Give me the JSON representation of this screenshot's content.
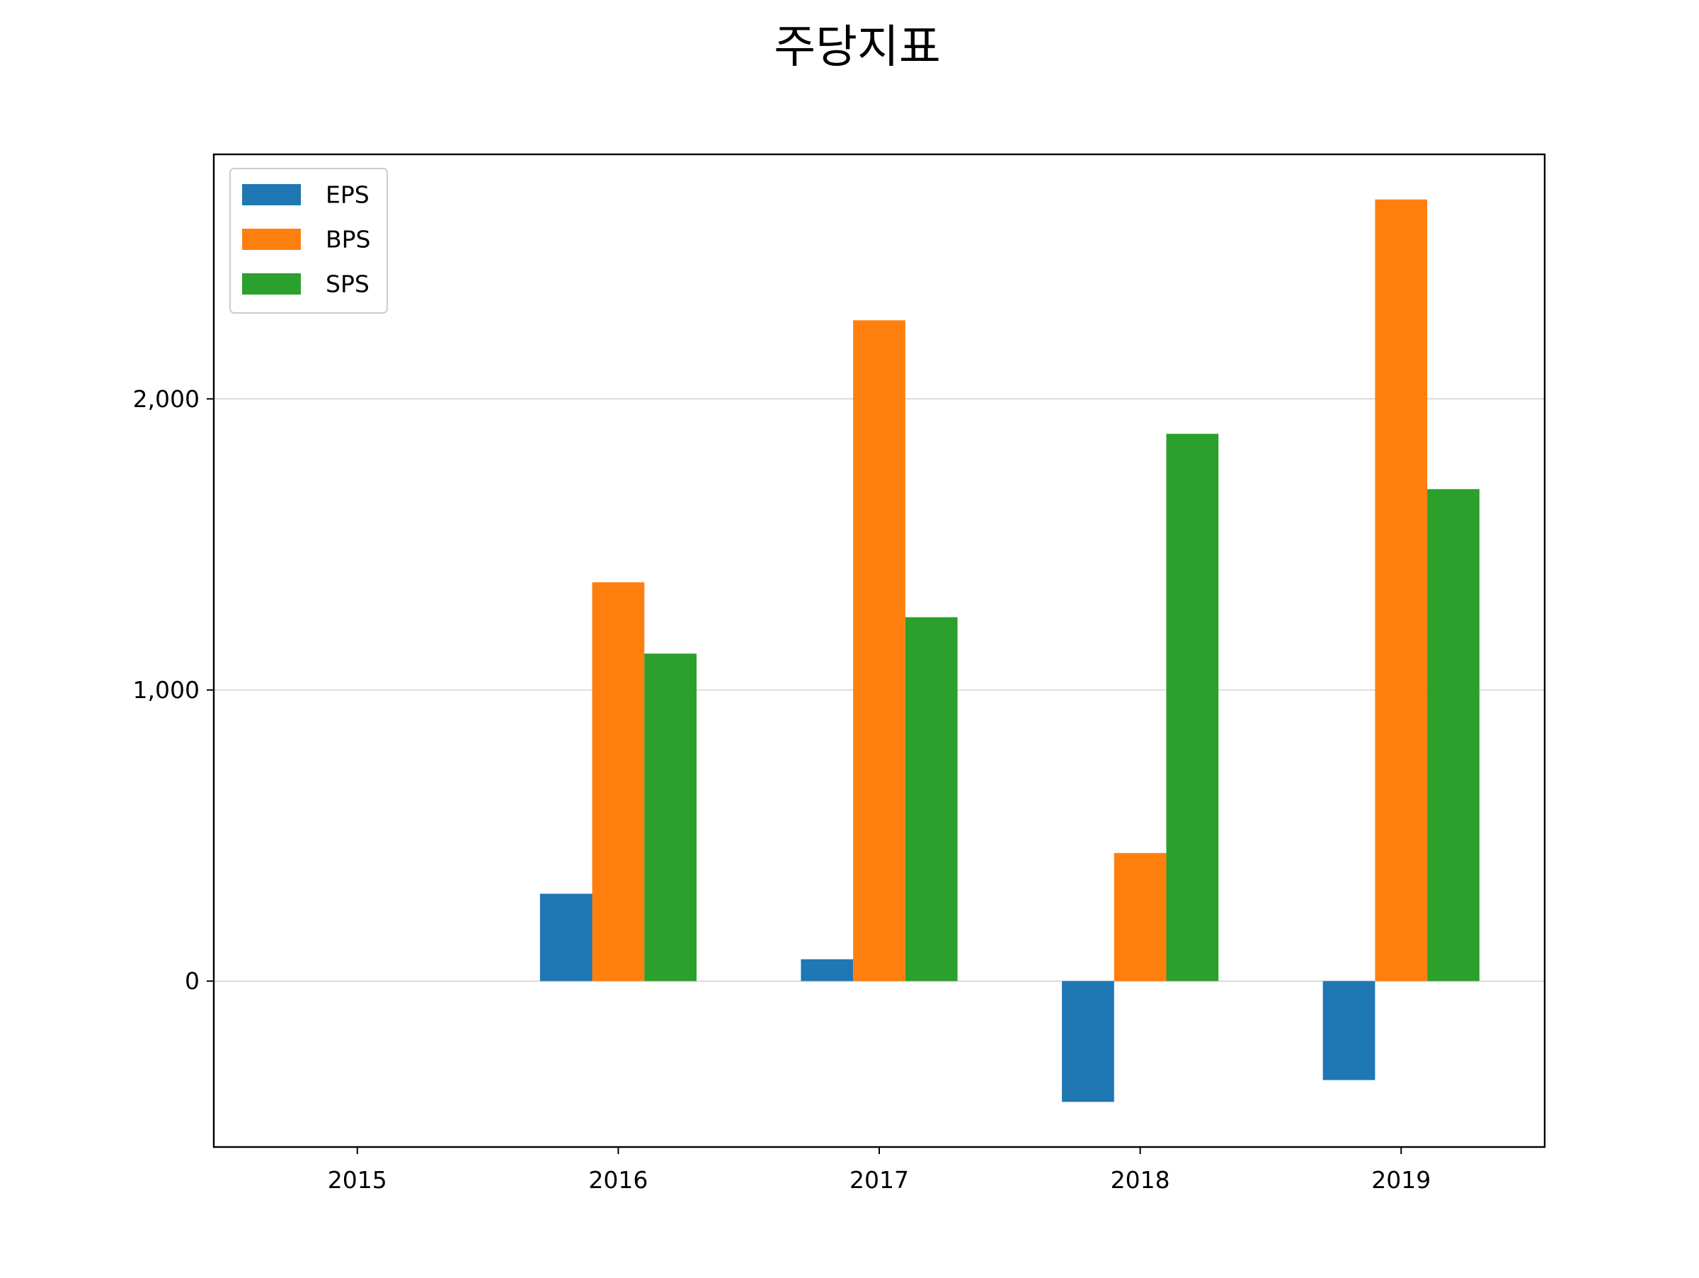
{
  "chart_data": {
    "type": "bar",
    "title": "주당지표",
    "xlabel": "",
    "ylabel": "",
    "categories": [
      "2015",
      "2016",
      "2017",
      "2018",
      "2019"
    ],
    "series": [
      {
        "name": "EPS",
        "color": "#1f77b4",
        "values": [
          null,
          300,
          75,
          -415,
          -340
        ]
      },
      {
        "name": "BPS",
        "color": "#ff7f0e",
        "values": [
          null,
          1370,
          2270,
          440,
          2685
        ]
      },
      {
        "name": "SPS",
        "color": "#2ca02c",
        "values": [
          null,
          1125,
          1250,
          1880,
          1690
        ]
      }
    ],
    "yticks": [
      0,
      1000,
      2000
    ],
    "ytick_labels": [
      "0",
      "1,000",
      "2,000"
    ],
    "ylim": [
      -570,
      2840
    ],
    "grid": "y",
    "legend_position": "top-left"
  }
}
